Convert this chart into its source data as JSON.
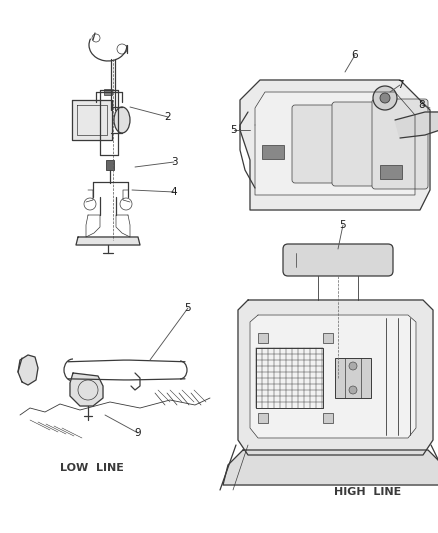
{
  "bg_color": "#ffffff",
  "line_color": "#3a3a3a",
  "label_color": "#1a1a1a",
  "fig_width": 4.39,
  "fig_height": 5.33,
  "dpi": 100
}
